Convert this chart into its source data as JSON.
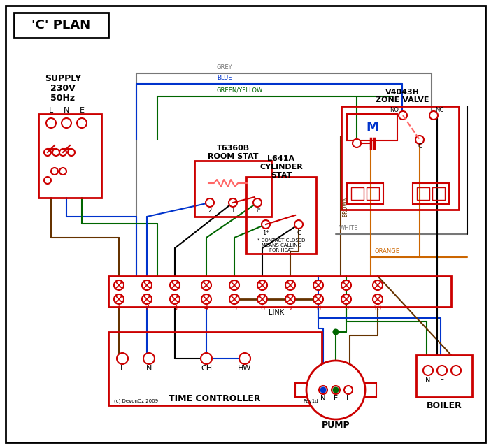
{
  "title": "'C' PLAN",
  "red": "#cc0000",
  "blue": "#0033cc",
  "green": "#006600",
  "grey": "#777777",
  "brown": "#663300",
  "orange": "#cc6600",
  "black": "#000000",
  "pink": "#ff6666",
  "supply_text": "SUPPLY\n230V\n50Hz",
  "zone_valve_title1": "V4043H",
  "zone_valve_title2": "ZONE VALVE",
  "room_stat_title1": "T6360B",
  "room_stat_title2": "ROOM STAT",
  "cyl_stat_title1": "L641A",
  "cyl_stat_title2": "CYLINDER",
  "cyl_stat_title3": "STAT",
  "time_ctrl_label": "TIME CONTROLLER",
  "pump_label": "PUMP",
  "boiler_label": "BOILER",
  "link_label": "LINK",
  "copyright": "(c) DevonOz 2009",
  "revision": "Rev1d"
}
